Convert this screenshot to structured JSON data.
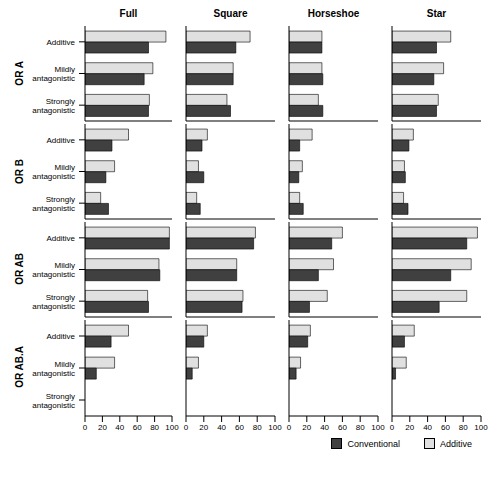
{
  "chart_data": [
    {
      "type": "bar",
      "orientation": "horizontal",
      "title": "Full",
      "ylabel": "OR A",
      "tick_labels": "y",
      "categories": [
        "Additive",
        "Mildly antagonistic",
        "Strongly antagonistic"
      ],
      "series": [
        {
          "name": "Conventional",
          "color": "#404040",
          "values": [
            73,
            68,
            73
          ]
        },
        {
          "name": "Additive",
          "color": "#e0e0e0",
          "values": [
            93,
            78,
            74
          ]
        }
      ],
      "xlim": [
        0,
        100
      ],
      "xticks": [
        0,
        20,
        40,
        60,
        80,
        100
      ]
    },
    {
      "type": "bar",
      "orientation": "horizontal",
      "title": "Square",
      "tick_labels": false,
      "categories": [
        "Additive",
        "Mildly antagonistic",
        "Strongly antagonistic"
      ],
      "series": [
        {
          "name": "Conventional",
          "color": "#404040",
          "values": [
            56,
            53,
            50
          ]
        },
        {
          "name": "Additive",
          "color": "#e0e0e0",
          "values": [
            72,
            53,
            46
          ]
        }
      ],
      "xlim": [
        0,
        100
      ],
      "xticks": [
        0,
        20,
        40,
        60,
        80,
        100
      ]
    },
    {
      "type": "bar",
      "orientation": "horizontal",
      "title": "Horseshoe",
      "tick_labels": false,
      "categories": [
        "Additive",
        "Mildly antagonistic",
        "Strongly antagonistic"
      ],
      "series": [
        {
          "name": "Conventional",
          "color": "#404040",
          "values": [
            37,
            38,
            38
          ]
        },
        {
          "name": "Additive",
          "color": "#e0e0e0",
          "values": [
            37,
            37,
            33
          ]
        }
      ],
      "xlim": [
        0,
        100
      ],
      "xticks": [
        0,
        20,
        40,
        60,
        80,
        100
      ]
    },
    {
      "type": "bar",
      "orientation": "horizontal",
      "title": "Star",
      "tick_labels": false,
      "categories": [
        "Additive",
        "Mildly antagonistic",
        "Strongly antagonistic"
      ],
      "series": [
        {
          "name": "Conventional",
          "color": "#404040",
          "values": [
            50,
            47,
            50
          ]
        },
        {
          "name": "Additive",
          "color": "#e0e0e0",
          "values": [
            66,
            58,
            52
          ]
        }
      ],
      "xlim": [
        0,
        100
      ],
      "xticks": [
        0,
        20,
        40,
        60,
        80,
        100
      ]
    },
    {
      "type": "bar",
      "orientation": "horizontal",
      "ylabel": "OR B",
      "tick_labels": "y",
      "categories": [
        "Additive",
        "Mildly antagonistic",
        "Strongly antagonistic"
      ],
      "series": [
        {
          "name": "Conventional",
          "color": "#404040",
          "values": [
            31,
            24,
            27
          ]
        },
        {
          "name": "Additive",
          "color": "#e0e0e0",
          "values": [
            50,
            34,
            18
          ]
        }
      ],
      "xlim": [
        0,
        100
      ],
      "xticks": [
        0,
        20,
        40,
        60,
        80,
        100
      ]
    },
    {
      "type": "bar",
      "orientation": "horizontal",
      "tick_labels": false,
      "categories": [
        "Additive",
        "Mildly antagonistic",
        "Strongly antagonistic"
      ],
      "series": [
        {
          "name": "Conventional",
          "color": "#404040",
          "values": [
            18,
            20,
            16
          ]
        },
        {
          "name": "Additive",
          "color": "#e0e0e0",
          "values": [
            24,
            14,
            12
          ]
        }
      ],
      "xlim": [
        0,
        100
      ],
      "xticks": [
        0,
        20,
        40,
        60,
        80,
        100
      ]
    },
    {
      "type": "bar",
      "orientation": "horizontal",
      "tick_labels": false,
      "categories": [
        "Additive",
        "Mildly antagonistic",
        "Strongly antagonistic"
      ],
      "series": [
        {
          "name": "Conventional",
          "color": "#404040",
          "values": [
            12,
            11,
            16
          ]
        },
        {
          "name": "Additive",
          "color": "#e0e0e0",
          "values": [
            26,
            15,
            12
          ]
        }
      ],
      "xlim": [
        0,
        100
      ],
      "xticks": [
        0,
        20,
        40,
        60,
        80,
        100
      ]
    },
    {
      "type": "bar",
      "orientation": "horizontal",
      "tick_labels": false,
      "categories": [
        "Additive",
        "Mildly antagonistic",
        "Strongly antagonistic"
      ],
      "series": [
        {
          "name": "Conventional",
          "color": "#404040",
          "values": [
            19,
            15,
            18
          ]
        },
        {
          "name": "Additive",
          "color": "#e0e0e0",
          "values": [
            24,
            14,
            13
          ]
        }
      ],
      "xlim": [
        0,
        100
      ],
      "xticks": [
        0,
        20,
        40,
        60,
        80,
        100
      ]
    },
    {
      "type": "bar",
      "orientation": "horizontal",
      "ylabel": "OR AB",
      "tick_labels": "y",
      "categories": [
        "Additive",
        "Mildly antagonistic",
        "Strongly antagonistic"
      ],
      "series": [
        {
          "name": "Conventional",
          "color": "#404040",
          "values": [
            97,
            86,
            73
          ]
        },
        {
          "name": "Additive",
          "color": "#e0e0e0",
          "values": [
            97,
            85,
            72
          ]
        }
      ],
      "xlim": [
        0,
        100
      ],
      "xticks": [
        0,
        20,
        40,
        60,
        80,
        100
      ]
    },
    {
      "type": "bar",
      "orientation": "horizontal",
      "tick_labels": false,
      "categories": [
        "Additive",
        "Mildly antagonistic",
        "Strongly antagonistic"
      ],
      "series": [
        {
          "name": "Conventional",
          "color": "#404040",
          "values": [
            76,
            57,
            63
          ]
        },
        {
          "name": "Additive",
          "color": "#e0e0e0",
          "values": [
            78,
            57,
            64
          ]
        }
      ],
      "xlim": [
        0,
        100
      ],
      "xticks": [
        0,
        20,
        40,
        60,
        80,
        100
      ]
    },
    {
      "type": "bar",
      "orientation": "horizontal",
      "tick_labels": false,
      "categories": [
        "Additive",
        "Mildly antagonistic",
        "Strongly antagonistic"
      ],
      "series": [
        {
          "name": "Conventional",
          "color": "#404040",
          "values": [
            48,
            33,
            23
          ]
        },
        {
          "name": "Additive",
          "color": "#e0e0e0",
          "values": [
            60,
            50,
            43
          ]
        }
      ],
      "xlim": [
        0,
        100
      ],
      "xticks": [
        0,
        20,
        40,
        60,
        80,
        100
      ]
    },
    {
      "type": "bar",
      "orientation": "horizontal",
      "tick_labels": false,
      "categories": [
        "Additive",
        "Mildly antagonistic",
        "Strongly antagonistic"
      ],
      "series": [
        {
          "name": "Conventional",
          "color": "#404040",
          "values": [
            84,
            66,
            53
          ]
        },
        {
          "name": "Additive",
          "color": "#e0e0e0",
          "values": [
            96,
            89,
            84
          ]
        }
      ],
      "xlim": [
        0,
        100
      ],
      "xticks": [
        0,
        20,
        40,
        60,
        80,
        100
      ]
    },
    {
      "type": "bar",
      "orientation": "horizontal",
      "ylabel": "OR AB.A",
      "categories": [
        "Additive",
        "Mildly antagonistic",
        "Strongly antagonistic"
      ],
      "series": [
        {
          "name": "Conventional",
          "color": "#404040",
          "values": [
            30,
            13,
            0
          ]
        },
        {
          "name": "Additive",
          "color": "#e0e0e0",
          "values": [
            50,
            34,
            0
          ]
        }
      ],
      "xlim": [
        0,
        100
      ],
      "xticks": [
        0,
        20,
        40,
        60,
        80,
        100
      ]
    },
    {
      "type": "bar",
      "orientation": "horizontal",
      "tick_labels": "x",
      "categories": [
        "Additive",
        "Mildly antagonistic",
        "Strongly antagonistic"
      ],
      "series": [
        {
          "name": "Conventional",
          "color": "#404040",
          "values": [
            20,
            7,
            0
          ]
        },
        {
          "name": "Additive",
          "color": "#e0e0e0",
          "values": [
            24,
            14,
            0
          ]
        }
      ],
      "xlim": [
        0,
        100
      ],
      "xticks": [
        0,
        20,
        40,
        60,
        80,
        100
      ]
    },
    {
      "type": "bar",
      "orientation": "horizontal",
      "tick_labels": "x",
      "categories": [
        "Additive",
        "Mildly antagonistic",
        "Strongly antagonistic"
      ],
      "series": [
        {
          "name": "Conventional",
          "color": "#404040",
          "values": [
            21,
            8,
            0
          ]
        },
        {
          "name": "Additive",
          "color": "#e0e0e0",
          "values": [
            24,
            13,
            0
          ]
        }
      ],
      "xlim": [
        0,
        100
      ],
      "xticks": [
        0,
        20,
        40,
        60,
        80,
        100
      ]
    },
    {
      "type": "bar",
      "orientation": "horizontal",
      "tick_labels": "x",
      "legend": "bottom",
      "categories": [
        "Additive",
        "Mildly antagonistic",
        "Strongly antagonistic"
      ],
      "series": [
        {
          "name": "Conventional",
          "color": "#404040",
          "values": [
            14,
            4,
            0
          ]
        },
        {
          "name": "Additive",
          "color": "#e0e0e0",
          "values": [
            25,
            16,
            0
          ]
        }
      ],
      "xlim": [
        0,
        100
      ],
      "xticks": [
        0,
        20,
        40,
        60,
        80,
        100
      ]
    }
  ]
}
